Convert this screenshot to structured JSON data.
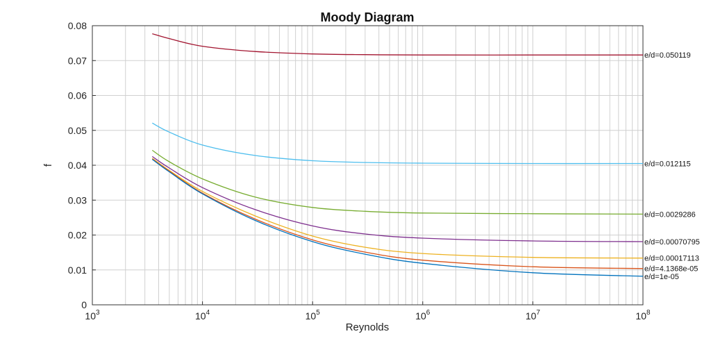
{
  "chart_data": {
    "type": "line",
    "title": "Moody Diagram",
    "xlabel": "Reynolds",
    "ylabel": "f",
    "xscale": "log",
    "xlim": [
      1000,
      100000000
    ],
    "ylim": [
      0,
      0.08
    ],
    "grid": true,
    "x_ticks": [
      {
        "base": "10",
        "exp": "3",
        "value": 1000
      },
      {
        "base": "10",
        "exp": "4",
        "value": 10000
      },
      {
        "base": "10",
        "exp": "5",
        "value": 100000
      },
      {
        "base": "10",
        "exp": "6",
        "value": 1000000
      },
      {
        "base": "10",
        "exp": "7",
        "value": 10000000
      },
      {
        "base": "10",
        "exp": "8",
        "value": 100000000
      }
    ],
    "y_ticks": [
      {
        "label": "0",
        "value": 0
      },
      {
        "label": "0.01",
        "value": 0.01
      },
      {
        "label": "0.02",
        "value": 0.02
      },
      {
        "label": "0.03",
        "value": 0.03
      },
      {
        "label": "0.04",
        "value": 0.04
      },
      {
        "label": "0.05",
        "value": 0.05
      },
      {
        "label": "0.06",
        "value": 0.06
      },
      {
        "label": "0.07",
        "value": 0.07
      },
      {
        "label": "0.08",
        "value": 0.08
      }
    ],
    "x": [
      3500,
      5000,
      10000,
      30000,
      100000,
      300000,
      1000000,
      10000000,
      100000000
    ],
    "series": [
      {
        "name": "e/d=0.050119",
        "color": "#a2142f",
        "values": [
          0.0777,
          0.0763,
          0.0741,
          0.0726,
          0.0719,
          0.0717,
          0.0716,
          0.0716,
          0.0716
        ]
      },
      {
        "name": "e/d=0.012115",
        "color": "#4dbeee",
        "values": [
          0.0521,
          0.0495,
          0.0458,
          0.0428,
          0.0413,
          0.0408,
          0.0406,
          0.0405,
          0.0405
        ]
      },
      {
        "name": "e/d=0.0029286",
        "color": "#77ac30",
        "values": [
          0.0443,
          0.041,
          0.0361,
          0.0309,
          0.0279,
          0.0268,
          0.0263,
          0.0261,
          0.026
        ]
      },
      {
        "name": "e/d=0.00070795",
        "color": "#7e2f8e",
        "values": [
          0.0425,
          0.0392,
          0.0336,
          0.0273,
          0.0226,
          0.0203,
          0.0191,
          0.0183,
          0.0181
        ]
      },
      {
        "name": "e/d=0.00017113",
        "color": "#edb120",
        "values": [
          0.042,
          0.0385,
          0.0325,
          0.0255,
          0.0197,
          0.0165,
          0.0147,
          0.0136,
          0.0134
        ]
      },
      {
        "name": "e/d=4.1368e-05",
        "color": "#d95319",
        "values": [
          0.0418,
          0.0383,
          0.032,
          0.0246,
          0.0186,
          0.0151,
          0.0128,
          0.0109,
          0.0104
        ]
      },
      {
        "name": "e/d=1e-05",
        "color": "#0072bd",
        "values": [
          0.0417,
          0.0381,
          0.0318,
          0.0242,
          0.0181,
          0.0145,
          0.0119,
          0.0092,
          0.0082
        ]
      }
    ]
  }
}
